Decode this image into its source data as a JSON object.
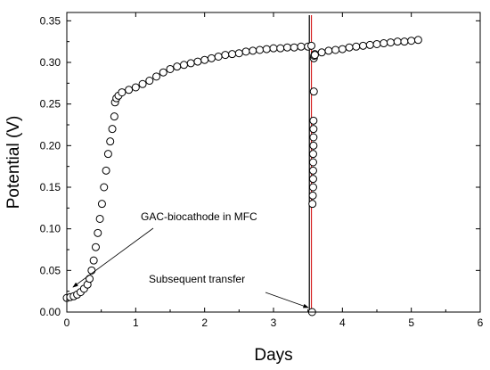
{
  "chart_data": {
    "type": "scatter",
    "xlabel": "Days",
    "ylabel": "Potential (V)",
    "xlim": [
      0,
      6
    ],
    "ylim": [
      0,
      0.36
    ],
    "xticks": [
      0,
      1,
      2,
      3,
      4,
      5,
      6
    ],
    "yticks": [
      0.0,
      0.05,
      0.1,
      0.15,
      0.2,
      0.25,
      0.3,
      0.35
    ],
    "ytick_labels": [
      "0.00",
      "0.05",
      "0.10",
      "0.15",
      "0.20",
      "0.25",
      "0.30",
      "0.35"
    ],
    "grid": false,
    "marker": "open-circle",
    "series": [
      {
        "color": "#000000",
        "x": [
          0.0,
          0.05,
          0.1,
          0.15,
          0.2,
          0.25,
          0.3,
          0.33,
          0.36,
          0.39,
          0.42,
          0.45,
          0.48,
          0.51,
          0.54,
          0.57,
          0.6,
          0.63,
          0.66,
          0.69,
          0.7,
          0.72,
          0.75,
          0.8,
          0.9,
          1.0,
          1.1,
          1.2,
          1.3,
          1.4,
          1.5,
          1.6,
          1.7,
          1.8,
          1.9,
          2.0,
          2.1,
          2.2,
          2.3,
          2.4,
          2.5,
          2.6,
          2.7,
          2.8,
          2.9,
          3.0,
          3.1,
          3.2,
          3.3,
          3.4,
          3.5,
          3.55,
          3.56,
          3.565,
          3.57,
          3.575,
          3.575,
          3.575,
          3.575,
          3.575,
          3.58,
          3.58,
          3.58,
          3.58,
          3.585,
          3.585,
          3.59,
          3.6,
          3.6,
          3.7,
          3.8,
          3.9,
          4.0,
          4.1,
          4.2,
          4.3,
          4.4,
          4.5,
          4.6,
          4.7,
          4.8,
          4.9,
          5.0,
          5.1
        ],
        "y": [
          0.017,
          0.018,
          0.019,
          0.021,
          0.024,
          0.028,
          0.033,
          0.04,
          0.05,
          0.062,
          0.078,
          0.095,
          0.112,
          0.13,
          0.15,
          0.17,
          0.19,
          0.205,
          0.22,
          0.235,
          0.252,
          0.257,
          0.26,
          0.264,
          0.267,
          0.27,
          0.274,
          0.278,
          0.283,
          0.288,
          0.292,
          0.295,
          0.297,
          0.299,
          0.301,
          0.303,
          0.305,
          0.307,
          0.309,
          0.31,
          0.311,
          0.313,
          0.314,
          0.315,
          0.316,
          0.317,
          0.317,
          0.318,
          0.318,
          0.319,
          0.319,
          0.32,
          0.0,
          0.13,
          0.14,
          0.15,
          0.16,
          0.17,
          0.18,
          0.19,
          0.2,
          0.21,
          0.22,
          0.23,
          0.265,
          0.305,
          0.308,
          0.31,
          0.309,
          0.312,
          0.314,
          0.315,
          0.316,
          0.318,
          0.319,
          0.32,
          0.321,
          0.322,
          0.323,
          0.324,
          0.325,
          0.325,
          0.326,
          0.327
        ]
      }
    ],
    "vertical_lines": [
      {
        "x": 3.52,
        "color": "#000000"
      },
      {
        "x": 3.55,
        "color": "#d62020"
      }
    ],
    "annotations": [
      {
        "text": "GAC-biocathode in MFC",
        "points_to": [
          0.1,
          0.03
        ]
      },
      {
        "text": "Subsequent transfer",
        "points_to": [
          3.55,
          0.002
        ]
      }
    ]
  }
}
